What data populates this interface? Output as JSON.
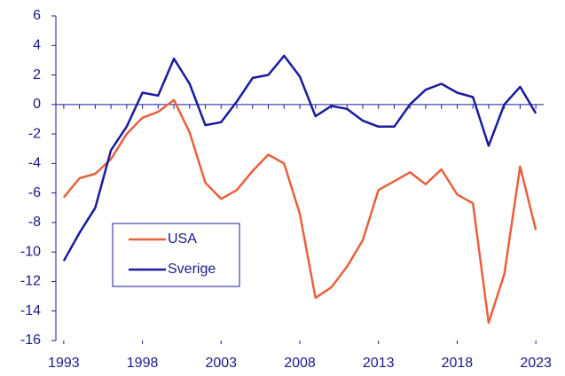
{
  "chart_data": {
    "type": "line",
    "x": [
      1993,
      1994,
      1995,
      1996,
      1997,
      1998,
      1999,
      2000,
      2001,
      2002,
      2003,
      2004,
      2005,
      2006,
      2007,
      2008,
      2009,
      2010,
      2011,
      2012,
      2013,
      2014,
      2015,
      2016,
      2017,
      2018,
      2019,
      2020,
      2021,
      2022,
      2023
    ],
    "series": [
      {
        "name": "USA",
        "color": "#e8603c",
        "values": [
          -6.3,
          -5.0,
          -4.7,
          -3.7,
          -2.0,
          -0.9,
          -0.5,
          0.3,
          -1.9,
          -5.3,
          -6.4,
          -5.8,
          -4.5,
          -3.4,
          -4.0,
          -7.4,
          -13.1,
          -12.4,
          -11.0,
          -9.2,
          -5.8,
          -5.2,
          -4.6,
          -5.4,
          -4.4,
          -6.1,
          -6.7,
          -14.8,
          -11.5,
          -4.2,
          -8.5
        ]
      },
      {
        "name": "Sverige",
        "color": "#1a1a9c",
        "values": [
          -10.6,
          -8.7,
          -7.0,
          -3.1,
          -1.5,
          0.8,
          0.6,
          3.1,
          1.4,
          -1.4,
          -1.2,
          0.2,
          1.8,
          2.0,
          3.3,
          1.9,
          -0.8,
          -0.1,
          -0.3,
          -1.1,
          -1.5,
          -1.5,
          0.0,
          1.0,
          1.4,
          0.8,
          0.5,
          -2.8,
          0.0,
          1.2,
          -0.6
        ]
      }
    ],
    "xlim": [
      1992.5,
      2023.5
    ],
    "xticks": [
      1993,
      1998,
      2003,
      2008,
      2013,
      2018,
      2023
    ],
    "ylim": [
      -16,
      6
    ],
    "yticks": [
      -16,
      -14,
      -12,
      -10,
      -8,
      -6,
      -4,
      -2,
      0,
      2,
      4,
      6
    ]
  }
}
